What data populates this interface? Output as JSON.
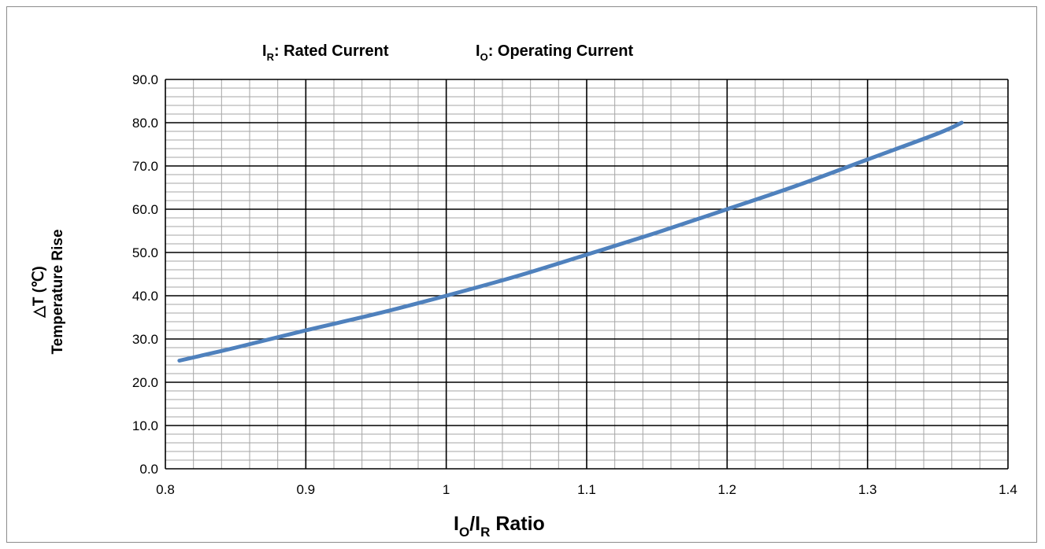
{
  "chart_data": {
    "type": "line",
    "legend_note": {
      "rated": {
        "symbol": "I",
        "subscript": "R",
        "text": ": Rated Current"
      },
      "operating": {
        "symbol": "I",
        "subscript": "O",
        "text": ": Operating Current"
      }
    },
    "xlabel": {
      "part1": "I",
      "sub1": "O",
      "part2": "/I",
      "sub2": "R",
      "part3": " Ratio"
    },
    "ylabel": {
      "line1": "△T (℃)",
      "line2": "Temperature Rise"
    },
    "xlim": [
      0.8,
      1.4
    ],
    "ylim": [
      0,
      90
    ],
    "x_ticks": [
      "0.8",
      "0.9",
      "1",
      "1.1",
      "1.2",
      "1.3",
      "1.4"
    ],
    "y_ticks": [
      "0.0",
      "10.0",
      "20.0",
      "30.0",
      "40.0",
      "50.0",
      "60.0",
      "70.0",
      "80.0",
      "90.0"
    ],
    "grid": true,
    "series": [
      {
        "color": "#4f81bd",
        "x": [
          0.81,
          0.85,
          0.9,
          0.95,
          1.0,
          1.05,
          1.1,
          1.15,
          1.2,
          1.25,
          1.3,
          1.35,
          1.367
        ],
        "y": [
          25.0,
          28.0,
          32.0,
          35.8,
          40.0,
          44.5,
          49.5,
          54.6,
          60.0,
          65.5,
          71.5,
          77.5,
          80.0
        ]
      }
    ]
  }
}
